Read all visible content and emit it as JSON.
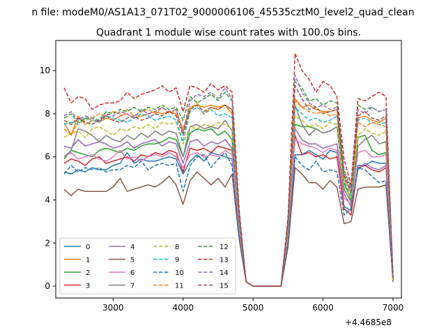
{
  "chart_data": {
    "type": "line",
    "suptitle": "n file: modeM0/AS1A13_071T02_9000006106_45535cztM0_level2_quad_clean",
    "title": "Quadrant 1 module wise count rates with 100.0s bins.",
    "xlabel": "",
    "ylabel": "",
    "x_offset_label": "+4.4685e8",
    "xlim": [
      2180,
      7120
    ],
    "ylim": [
      -0.55,
      11.4
    ],
    "xticks": [
      3000,
      4000,
      5000,
      6000,
      7000
    ],
    "yticks": [
      0,
      2,
      4,
      6,
      8,
      10
    ],
    "grid": false,
    "legend": {
      "placement": "lower-left",
      "columns": 4
    },
    "x": [
      2300,
      2400,
      2500,
      2600,
      2700,
      2800,
      2900,
      3000,
      3100,
      3200,
      3300,
      3400,
      3500,
      3600,
      3700,
      3800,
      3900,
      4000,
      4100,
      4200,
      4300,
      4400,
      4500,
      4600,
      4700,
      4800,
      4900,
      5000,
      5100,
      5200,
      5300,
      5400,
      5500,
      5600,
      5700,
      5800,
      5900,
      6000,
      6100,
      6200,
      6300,
      6400,
      6500,
      6600,
      6700,
      6800,
      6900,
      7000
    ],
    "series": [
      {
        "name": "0",
        "color": "#1f77b4",
        "dash": "solid",
        "values": [
          5.3,
          5.2,
          5.4,
          5.3,
          5.5,
          5.4,
          5.4,
          5.6,
          5.7,
          6.2,
          5.7,
          5.9,
          5.8,
          5.8,
          5.9,
          6.0,
          5.9,
          5.2,
          5.8,
          6.1,
          5.8,
          6.2,
          6.1,
          6.0,
          5.9,
          2.5,
          0.2,
          0.0,
          0.0,
          0.0,
          0.0,
          0.0,
          2.2,
          6.1,
          6.1,
          6.3,
          6.1,
          5.9,
          6.3,
          6.2,
          3.7,
          3.5,
          5.6,
          5.6,
          5.8,
          5.7,
          5.7,
          0.3
        ]
      },
      {
        "name": "1",
        "color": "#ff7f0e",
        "dash": "solid",
        "values": [
          7.6,
          7.0,
          7.9,
          7.5,
          7.7,
          7.6,
          7.8,
          7.7,
          7.9,
          8.0,
          7.8,
          7.9,
          8.0,
          8.1,
          8.0,
          8.1,
          8.0,
          7.3,
          8.3,
          8.4,
          8.3,
          8.4,
          8.3,
          8.4,
          8.0,
          3.2,
          0.2,
          0.0,
          0.0,
          0.0,
          0.0,
          0.0,
          2.8,
          8.7,
          8.3,
          8.4,
          8.2,
          8.1,
          8.1,
          8.2,
          5.2,
          4.3,
          7.8,
          7.9,
          7.7,
          7.6,
          7.8,
          0.4
        ]
      },
      {
        "name": "2",
        "color": "#2ca02c",
        "dash": "solid",
        "values": [
          5.9,
          6.3,
          6.2,
          6.1,
          6.0,
          6.3,
          6.4,
          6.3,
          6.2,
          6.4,
          6.3,
          6.5,
          6.6,
          6.6,
          6.7,
          6.9,
          6.8,
          6.0,
          7.1,
          7.3,
          7.2,
          7.3,
          7.0,
          7.2,
          6.8,
          2.8,
          0.2,
          0.0,
          0.0,
          0.0,
          0.0,
          0.0,
          2.5,
          7.5,
          7.4,
          7.4,
          7.3,
          7.1,
          7.2,
          7.4,
          4.8,
          4.0,
          6.9,
          7.0,
          6.3,
          6.1,
          6.2,
          0.3
        ]
      },
      {
        "name": "3",
        "color": "#d62728",
        "dash": "solid",
        "values": [
          5.7,
          5.9,
          5.8,
          5.6,
          5.9,
          6.0,
          5.7,
          5.8,
          5.9,
          6.0,
          5.8,
          6.1,
          6.0,
          6.2,
          6.1,
          6.3,
          6.2,
          5.3,
          6.4,
          6.3,
          6.4,
          6.2,
          6.5,
          6.4,
          6.3,
          2.6,
          0.2,
          0.0,
          0.0,
          0.0,
          0.0,
          0.0,
          2.2,
          7.0,
          6.1,
          6.2,
          6.0,
          6.1,
          5.9,
          6.0,
          3.6,
          3.3,
          5.5,
          5.6,
          5.4,
          5.3,
          5.5,
          0.3
        ]
      },
      {
        "name": "4",
        "color": "#9467bd",
        "dash": "solid",
        "values": [
          6.5,
          6.4,
          6.8,
          6.5,
          6.6,
          6.7,
          6.6,
          6.4,
          6.5,
          6.7,
          6.4,
          6.6,
          6.7,
          6.8,
          6.5,
          6.7,
          6.6,
          5.7,
          6.7,
          6.8,
          6.5,
          6.7,
          6.6,
          6.8,
          6.4,
          2.7,
          0.2,
          0.0,
          0.0,
          0.0,
          0.0,
          0.0,
          2.4,
          7.3,
          6.8,
          6.6,
          6.6,
          6.4,
          6.5,
          6.6,
          4.3,
          3.7,
          5.4,
          5.7,
          5.5,
          5.4,
          5.6,
          0.3
        ]
      },
      {
        "name": "5",
        "color": "#8c564b",
        "dash": "solid",
        "values": [
          4.5,
          4.2,
          4.5,
          4.4,
          4.4,
          4.4,
          4.4,
          4.6,
          5.0,
          4.4,
          4.5,
          4.6,
          4.7,
          4.6,
          4.8,
          5.1,
          4.7,
          3.8,
          4.9,
          5.3,
          5.0,
          4.7,
          5.0,
          4.6,
          5.2,
          2.2,
          0.2,
          0.0,
          0.0,
          0.0,
          0.0,
          0.0,
          1.8,
          5.5,
          5.2,
          4.8,
          4.8,
          4.5,
          4.9,
          4.6,
          2.9,
          3.0,
          4.5,
          4.6,
          4.6,
          4.6,
          4.7,
          0.2
        ]
      },
      {
        "name": "6",
        "color": "#e377c2",
        "dash": "solid",
        "values": [
          6.0,
          6.2,
          5.9,
          6.0,
          6.1,
          5.9,
          5.8,
          6.0,
          6.3,
          5.9,
          6.0,
          5.8,
          6.0,
          6.1,
          6.0,
          6.2,
          6.0,
          5.5,
          6.1,
          6.2,
          6.0,
          6.1,
          6.0,
          6.3,
          6.1,
          2.7,
          0.2,
          0.0,
          0.0,
          0.0,
          0.0,
          0.0,
          2.3,
          6.8,
          6.6,
          6.5,
          6.4,
          6.2,
          6.4,
          6.3,
          4.1,
          3.8,
          6.2,
          6.3,
          6.0,
          6.0,
          6.1,
          0.3
        ]
      },
      {
        "name": "7",
        "color": "#7f7f7f",
        "dash": "solid",
        "values": [
          6.0,
          6.3,
          7.3,
          7.2,
          7.0,
          6.7,
          7.0,
          6.8,
          6.7,
          7.0,
          6.8,
          7.1,
          6.9,
          7.2,
          7.0,
          7.2,
          7.1,
          6.0,
          7.4,
          7.5,
          7.3,
          7.4,
          7.3,
          7.7,
          7.2,
          3.0,
          0.2,
          0.0,
          0.0,
          0.0,
          0.0,
          0.0,
          2.7,
          8.4,
          7.5,
          7.0,
          7.3,
          7.1,
          7.2,
          7.4,
          4.5,
          3.9,
          6.5,
          6.8,
          7.0,
          6.6,
          6.7,
          0.4
        ]
      },
      {
        "name": "8",
        "color": "#bcbd22",
        "dash": "dashed",
        "values": [
          6.9,
          7.1,
          7.2,
          6.9,
          7.3,
          7.4,
          7.2,
          7.0,
          7.3,
          7.2,
          7.4,
          7.3,
          7.5,
          7.3,
          7.6,
          7.5,
          7.6,
          6.6,
          7.4,
          7.3,
          7.5,
          7.4,
          7.6,
          7.5,
          7.3,
          3.0,
          0.2,
          0.0,
          0.0,
          0.0,
          0.0,
          0.0,
          2.6,
          7.9,
          7.7,
          7.4,
          7.5,
          7.3,
          7.6,
          7.5,
          4.6,
          4.1,
          7.0,
          7.3,
          7.1,
          7.0,
          7.2,
          0.3
        ]
      },
      {
        "name": "9",
        "color": "#17becf",
        "dash": "dashed",
        "values": [
          7.5,
          7.6,
          7.5,
          7.8,
          7.7,
          7.6,
          7.9,
          7.8,
          7.7,
          7.6,
          7.8,
          8.0,
          7.9,
          7.7,
          7.8,
          7.9,
          7.7,
          6.7,
          8.1,
          8.3,
          8.0,
          8.2,
          7.9,
          8.0,
          7.8,
          3.0,
          0.2,
          0.0,
          0.0,
          0.0,
          0.0,
          0.0,
          2.7,
          8.3,
          8.0,
          7.7,
          7.8,
          7.6,
          7.7,
          7.9,
          4.9,
          4.2,
          7.7,
          7.8,
          7.6,
          7.5,
          7.6,
          0.3
        ]
      },
      {
        "name": "10",
        "color": "#1f77b4",
        "dash": "dashed",
        "values": [
          5.2,
          5.6,
          5.3,
          5.5,
          5.4,
          5.5,
          5.3,
          5.4,
          5.4,
          5.6,
          5.5,
          5.8,
          5.4,
          5.6,
          5.7,
          5.6,
          5.7,
          4.4,
          5.6,
          6.0,
          6.1,
          5.5,
          5.9,
          6.2,
          5.6,
          2.3,
          0.2,
          0.0,
          0.0,
          0.0,
          0.0,
          0.0,
          2.0,
          6.0,
          5.6,
          5.4,
          5.8,
          5.3,
          5.4,
          5.3,
          3.3,
          3.6,
          5.5,
          5.4,
          5.1,
          4.8,
          4.9,
          0.2
        ]
      },
      {
        "name": "11",
        "color": "#ff7f0e",
        "dash": "dashed",
        "values": [
          7.3,
          7.0,
          7.6,
          7.7,
          7.8,
          8.0,
          7.9,
          8.1,
          8.0,
          8.2,
          7.9,
          8.1,
          8.2,
          8.0,
          8.3,
          8.0,
          8.2,
          7.2,
          8.2,
          8.5,
          8.0,
          8.3,
          8.2,
          8.4,
          8.2,
          3.2,
          0.2,
          0.0,
          0.0,
          0.0,
          0.0,
          0.0,
          2.8,
          8.6,
          8.3,
          8.1,
          8.0,
          8.1,
          7.9,
          8.0,
          5.0,
          4.4,
          7.6,
          7.4,
          7.6,
          7.5,
          7.4,
          0.3
        ]
      },
      {
        "name": "12",
        "color": "#2ca02c",
        "dash": "dashed",
        "values": [
          7.8,
          8.0,
          7.6,
          7.8,
          7.8,
          7.7,
          8.1,
          8.0,
          8.2,
          8.1,
          8.3,
          8.1,
          8.3,
          8.2,
          8.4,
          8.2,
          8.3,
          7.7,
          8.8,
          8.5,
          8.7,
          8.9,
          8.6,
          9.0,
          8.6,
          3.4,
          0.2,
          0.0,
          0.0,
          0.0,
          0.0,
          0.0,
          3.0,
          9.5,
          9.2,
          8.6,
          8.7,
          8.4,
          8.6,
          8.5,
          5.4,
          4.6,
          8.4,
          8.2,
          8.3,
          8.1,
          8.2,
          0.4
        ]
      },
      {
        "name": "13",
        "color": "#d62728",
        "dash": "dashed",
        "values": [
          9.2,
          8.5,
          8.8,
          8.7,
          8.2,
          8.4,
          8.5,
          8.5,
          8.6,
          9.0,
          8.7,
          8.9,
          9.0,
          9.1,
          9.3,
          9.0,
          9.2,
          8.1,
          9.3,
          9.2,
          9.0,
          9.4,
          9.1,
          9.3,
          9.0,
          3.6,
          0.2,
          0.0,
          0.0,
          0.0,
          0.0,
          0.0,
          3.2,
          10.8,
          10.0,
          9.6,
          9.0,
          9.5,
          9.3,
          8.8,
          5.9,
          4.7,
          8.7,
          8.6,
          8.8,
          9.0,
          8.8,
          0.4
        ]
      },
      {
        "name": "14",
        "color": "#9467bd",
        "dash": "dashed",
        "values": [
          7.9,
          8.1,
          7.7,
          7.9,
          7.8,
          7.6,
          8.0,
          7.9,
          8.1,
          8.0,
          7.8,
          8.2,
          8.0,
          8.1,
          8.3,
          8.1,
          8.2,
          7.1,
          8.6,
          8.9,
          8.8,
          9.0,
          8.7,
          9.2,
          8.7,
          3.4,
          0.2,
          0.0,
          0.0,
          0.0,
          0.0,
          0.0,
          3.0,
          9.8,
          9.0,
          8.5,
          8.3,
          8.4,
          8.2,
          8.3,
          5.3,
          4.5,
          8.2,
          8.0,
          8.3,
          8.1,
          8.2,
          0.4
        ]
      },
      {
        "name": "15",
        "color": "#8c564b",
        "dash": "dashed",
        "values": [
          7.7,
          7.5,
          7.8,
          7.6,
          7.5,
          7.7,
          7.9,
          7.7,
          7.6,
          7.8,
          7.9,
          7.7,
          7.8,
          8.0,
          7.9,
          8.1,
          7.9,
          7.0,
          8.2,
          8.4,
          8.1,
          8.3,
          8.2,
          8.4,
          8.2,
          3.3,
          0.2,
          0.0,
          0.0,
          0.0,
          0.0,
          0.0,
          2.9,
          9.3,
          8.7,
          8.2,
          8.3,
          8.0,
          8.1,
          8.2,
          5.1,
          4.4,
          7.9,
          8.1,
          7.8,
          7.7,
          7.9,
          0.4
        ]
      }
    ]
  }
}
